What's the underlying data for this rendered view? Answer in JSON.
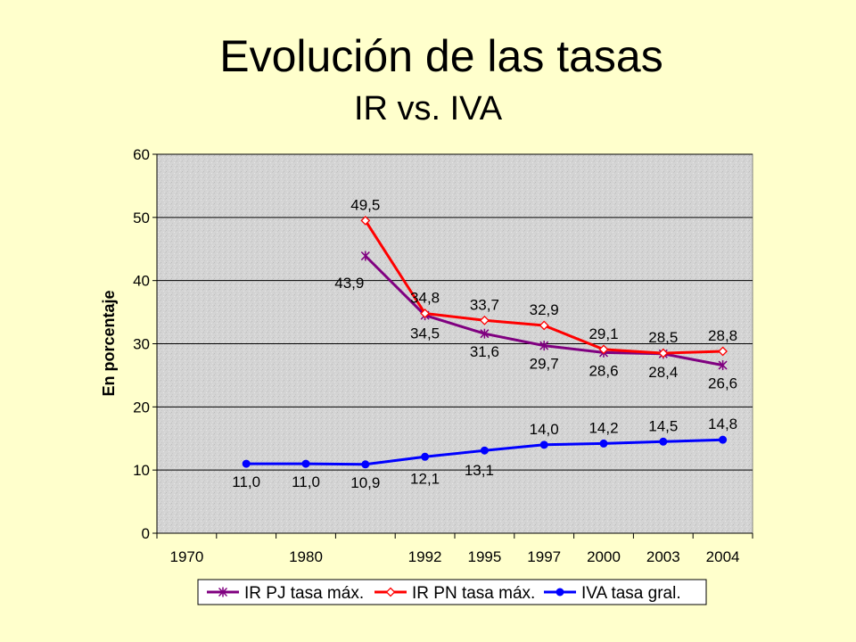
{
  "title": "Evolución de las tasas",
  "subtitle": "IR vs. IVA",
  "chart_data": {
    "type": "line",
    "ylabel": "En porcentaje",
    "xlabel": "",
    "ylim": [
      0,
      60
    ],
    "yticks": [
      0,
      10,
      20,
      30,
      40,
      50,
      60
    ],
    "categories": [
      "1970",
      "",
      "1980",
      "",
      "1992",
      "1995",
      "1997",
      "2000",
      "2003",
      "2004"
    ],
    "grid": true,
    "legend": "bottom",
    "series": [
      {
        "name": "IR PJ tasa máx.",
        "color": "#800080",
        "marker": "star",
        "values": [
          null,
          null,
          null,
          43.9,
          34.5,
          31.6,
          29.7,
          28.6,
          28.4,
          26.6
        ],
        "labels": [
          null,
          null,
          null,
          "43,9",
          "34,5",
          "31,6",
          "29,7",
          "28,6",
          "28,4",
          "26,6"
        ]
      },
      {
        "name": "IR PN tasa máx.",
        "color": "#FF0000",
        "marker": "diamond",
        "values": [
          null,
          null,
          null,
          49.5,
          34.8,
          33.7,
          32.9,
          29.1,
          28.5,
          28.8
        ],
        "labels": [
          null,
          null,
          null,
          "49,5",
          "34,8",
          "33,7",
          "32,9",
          "29,1",
          "28,5",
          "28,8"
        ]
      },
      {
        "name": "IVA tasa gral.",
        "color": "#0000FF",
        "marker": "circle",
        "values": [
          null,
          11.0,
          11.0,
          10.9,
          12.1,
          13.1,
          14.0,
          14.2,
          14.5,
          14.8
        ],
        "labels": [
          null,
          "11,0",
          "11,0",
          "10,9",
          "12,1",
          "13,1",
          "14,0",
          "14,2",
          "14,5",
          "14,8"
        ]
      }
    ]
  }
}
